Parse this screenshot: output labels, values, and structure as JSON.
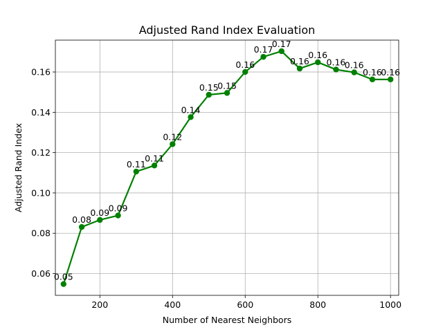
{
  "chart_data": {
    "type": "line",
    "title": "Adjusted Rand Index Evaluation",
    "xlabel": "Number of Nearest Neighbors",
    "ylabel": "Adjusted Rand Index",
    "xlim": [
      77.5,
      1022.5
    ],
    "ylim": [
      0.0492,
      0.1758
    ],
    "xticks": [
      200,
      400,
      600,
      800,
      1000
    ],
    "xtick_labels": [
      "200",
      "400",
      "600",
      "800",
      "1000"
    ],
    "yticks": [
      0.06,
      0.08,
      0.1,
      0.12,
      0.14,
      0.16
    ],
    "ytick_labels": [
      "0.06",
      "0.08",
      "0.10",
      "0.12",
      "0.14",
      "0.16"
    ],
    "grid": true,
    "color": "#008000",
    "marker": "circle",
    "series": [
      {
        "x": [
          100,
          150,
          200,
          250,
          300,
          350,
          400,
          450,
          500,
          550,
          600,
          650,
          700,
          750,
          800,
          850,
          900,
          950,
          1000
        ],
        "values": [
          0.0548,
          0.0831,
          0.0866,
          0.0888,
          0.1106,
          0.1136,
          0.1242,
          0.1376,
          0.1487,
          0.1496,
          0.16,
          0.1675,
          0.1703,
          0.1617,
          0.1648,
          0.1612,
          0.1598,
          0.1563,
          0.1563
        ],
        "labels": [
          "0.05",
          "0.08",
          "0.09",
          "0.09",
          "0.11",
          "0.11",
          "0.12",
          "0.14",
          "0.15",
          "0.15",
          "0.16",
          "0.17",
          "0.17",
          "0.16",
          "0.16",
          "0.16",
          "0.16",
          "0.16",
          "0.16"
        ]
      }
    ]
  }
}
